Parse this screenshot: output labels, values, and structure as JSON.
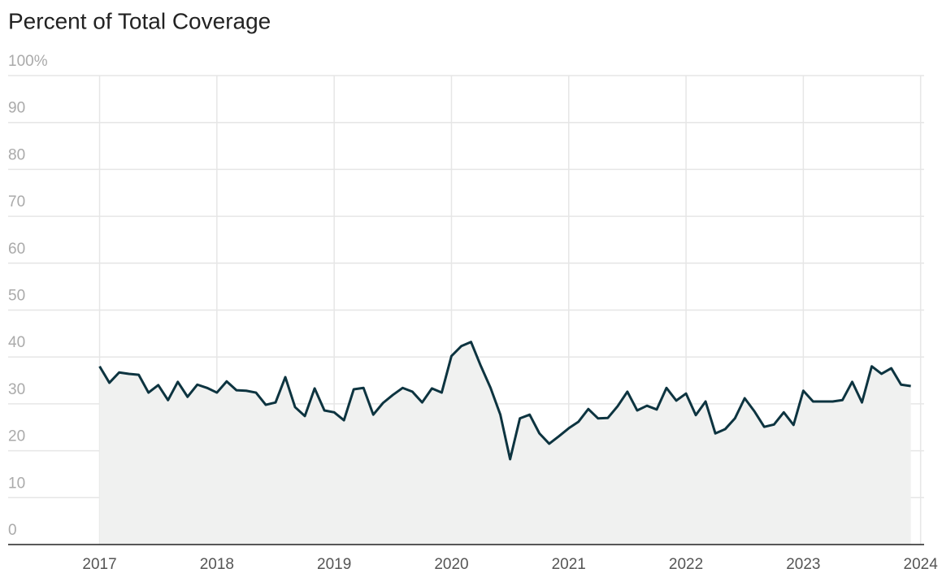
{
  "chart_data": {
    "type": "area",
    "title": "Percent of Total Coverage",
    "x": [
      "2017-01",
      "2017-02",
      "2017-03",
      "2017-04",
      "2017-05",
      "2017-06",
      "2017-07",
      "2017-08",
      "2017-09",
      "2017-10",
      "2017-11",
      "2017-12",
      "2018-01",
      "2018-02",
      "2018-03",
      "2018-04",
      "2018-05",
      "2018-06",
      "2018-07",
      "2018-08",
      "2018-09",
      "2018-10",
      "2018-11",
      "2018-12",
      "2019-01",
      "2019-02",
      "2019-03",
      "2019-04",
      "2019-05",
      "2019-06",
      "2019-07",
      "2019-08",
      "2019-09",
      "2019-10",
      "2019-11",
      "2019-12",
      "2020-01",
      "2020-02",
      "2020-03",
      "2020-04",
      "2020-05",
      "2020-06",
      "2020-07",
      "2020-08",
      "2020-09",
      "2020-10",
      "2020-11",
      "2020-12",
      "2021-01",
      "2021-02",
      "2021-03",
      "2021-04",
      "2021-05",
      "2021-06",
      "2021-07",
      "2021-08",
      "2021-09",
      "2021-10",
      "2021-11",
      "2021-12",
      "2022-01",
      "2022-02",
      "2022-03",
      "2022-04",
      "2022-05",
      "2022-06",
      "2022-07",
      "2022-08",
      "2022-09",
      "2022-10",
      "2022-11",
      "2022-12",
      "2023-01",
      "2023-02",
      "2023-03",
      "2023-04",
      "2023-05",
      "2023-06",
      "2023-07",
      "2023-08",
      "2023-09",
      "2023-10",
      "2023-11",
      "2023-12"
    ],
    "series": [
      {
        "color": "#0d3440",
        "fill": "#f0f1f0",
        "values": [
          38.0,
          34.5,
          36.7,
          36.4,
          36.2,
          32.4,
          34.0,
          30.8,
          34.7,
          31.5,
          34.1,
          33.4,
          32.4,
          34.8,
          32.9,
          32.8,
          32.4,
          29.8,
          30.3,
          35.7,
          29.3,
          27.4,
          33.3,
          28.6,
          28.2,
          26.5,
          33.1,
          33.4,
          27.7,
          30.2,
          31.9,
          33.4,
          32.6,
          30.3,
          33.3,
          32.4,
          40.2,
          42.3,
          43.2,
          38.1,
          33.4,
          27.7,
          18.2,
          26.9,
          27.7,
          23.7,
          21.5,
          23.1,
          24.8,
          26.2,
          28.9,
          26.9,
          27.0,
          29.5,
          32.6,
          28.6,
          29.6,
          28.8,
          33.4,
          30.7,
          32.2,
          27.6,
          30.5,
          23.7,
          24.6,
          26.9,
          31.2,
          28.4,
          25.1,
          25.6,
          28.2,
          25.5,
          32.8,
          30.5,
          30.5,
          30.5,
          30.8,
          34.7,
          30.3,
          38.0,
          36.4,
          37.6,
          34.1,
          33.8
        ]
      }
    ],
    "xlim": [
      2016.22,
      2024.03
    ],
    "xticks": [
      2017,
      2018,
      2019,
      2020,
      2021,
      2022,
      2023,
      2024
    ],
    "ylim": [
      0,
      100
    ],
    "yticks": [
      0,
      10,
      20,
      30,
      40,
      50,
      60,
      70,
      80,
      90,
      {
        "value": 100,
        "label": "100%"
      }
    ],
    "grid": true
  }
}
